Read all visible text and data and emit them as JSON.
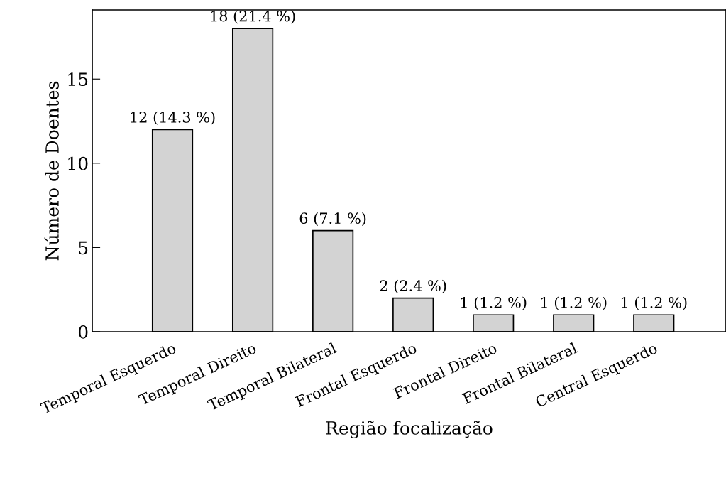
{
  "chart_data": {
    "type": "bar",
    "xlabel": "Região focalização",
    "ylabel": "Número de Doentes",
    "categories": [
      "Temporal Esquerdo",
      "Temporal Direito",
      "Temporal Bilateral",
      "Frontal Esquerdo",
      "Frontal Direito",
      "Frontal Bilateral",
      "Central Esquerdo"
    ],
    "values": [
      12,
      18,
      6,
      2,
      1,
      1,
      1
    ],
    "value_labels": [
      "12 (14.3 %)",
      "18 (21.4 %)",
      "6 (7.1 %)",
      "2 (2.4 %)",
      "1 (1.2 %)",
      "1 (1.2 %)",
      "1 (1.2 %)"
    ],
    "color": "#d3d3d3",
    "ylim": [
      0,
      19.1
    ],
    "yticks": [
      0,
      5,
      10,
      15
    ],
    "grid": false,
    "legend": false
  }
}
